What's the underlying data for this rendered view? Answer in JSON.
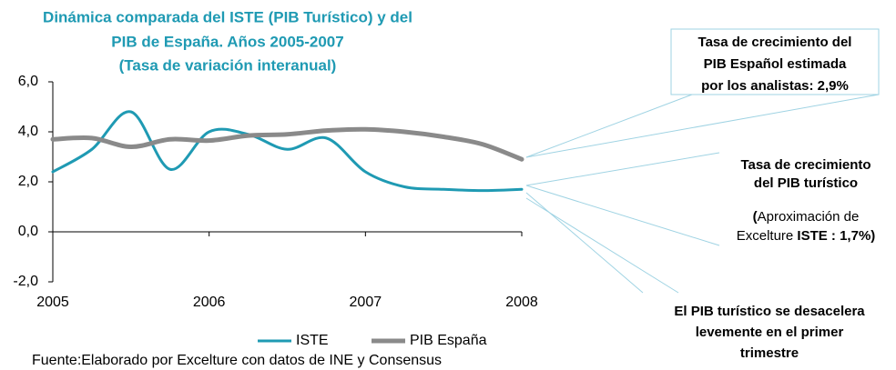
{
  "chart_data": {
    "type": "line",
    "title": [
      "Dinámica comparada del ISTE (PIB Turístico) y del",
      "PIB de España. Años 2005-2007",
      "(Tasa de variación interanual)"
    ],
    "x": [
      2005,
      2005.25,
      2005.5,
      2005.75,
      2006,
      2006.25,
      2006.5,
      2006.75,
      2007,
      2007.25,
      2007.5,
      2007.75,
      2008
    ],
    "series": [
      {
        "name": "ISTE",
        "color": "#1f9ab3",
        "values": [
          2.4,
          3.3,
          4.8,
          2.5,
          4.0,
          3.9,
          3.3,
          3.75,
          2.4,
          1.8,
          1.7,
          1.65,
          1.7
        ]
      },
      {
        "name": "PIB España",
        "color": "#8a8a8a",
        "values": [
          3.7,
          3.75,
          3.4,
          3.7,
          3.65,
          3.85,
          3.9,
          4.05,
          4.1,
          4.0,
          3.8,
          3.5,
          2.9
        ]
      }
    ],
    "xlim": [
      2005,
      2008
    ],
    "xticks": [
      2005,
      2006,
      2007,
      2008
    ],
    "ylim": [
      -2,
      6
    ],
    "yticks": [
      {
        "value": -2,
        "label": "-2,0"
      },
      {
        "value": 0,
        "label": "0,0"
      },
      {
        "value": 2,
        "label": "2,0"
      },
      {
        "value": 4,
        "label": "4,0"
      },
      {
        "value": 6,
        "label": "6,0"
      }
    ],
    "source": "Fuente:Elaborado por Excelture con datos de INE y Consensus",
    "annotations": [
      {
        "lines": [
          [
            {
              "text": "Tasa de crecimiento del",
              "bold": true
            }
          ],
          [
            {
              "text": "PIB Español estimada",
              "bold": true
            }
          ],
          [
            {
              "text": "por los analistas: 2,9%",
              "bold": true
            }
          ]
        ]
      },
      {
        "lines": [
          [
            {
              "text": "Tasa de crecimiento",
              "bold": true
            }
          ],
          [
            {
              "text": "del PIB turístico",
              "bold": true
            }
          ],
          [
            {
              "text": "(",
              "bold": true
            },
            {
              "text": "Aproximación de",
              "bold": false
            }
          ],
          [
            {
              "text": "Excelture ",
              "bold": false
            },
            {
              "text": "ISTE : 1,7%)",
              "bold": true
            }
          ]
        ]
      },
      {
        "lines": [
          [
            {
              "text": "El PIB turístico se desacelera",
              "bold": true
            }
          ],
          [
            {
              "text": "levemente en el primer",
              "bold": true
            }
          ],
          [
            {
              "text": "trimestre",
              "bold": true
            }
          ]
        ]
      }
    ]
  }
}
